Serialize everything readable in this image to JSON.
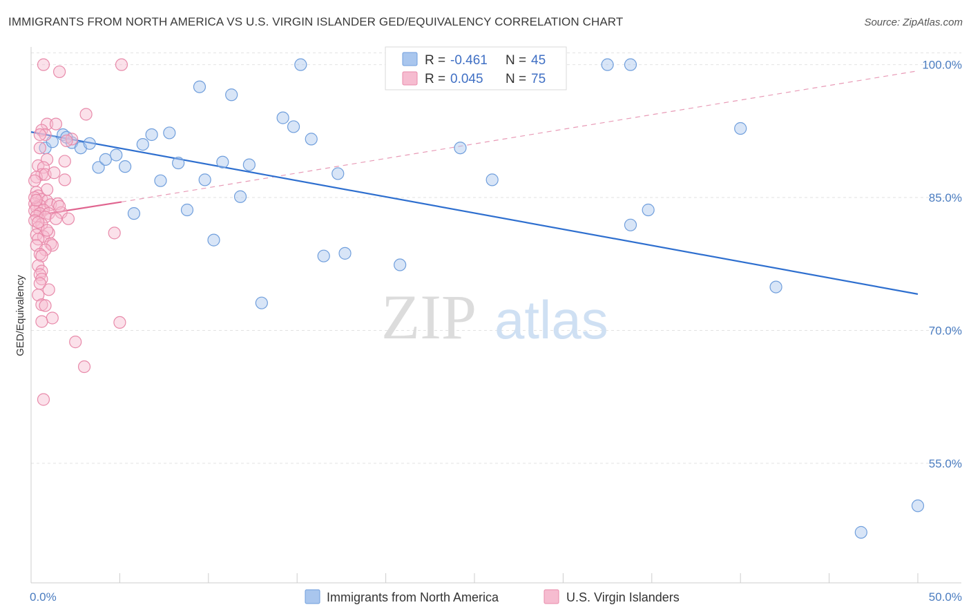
{
  "title": "IMMIGRANTS FROM NORTH AMERICA VS U.S. VIRGIN ISLANDER GED/EQUIVALENCY CORRELATION CHART",
  "source": "Source: ZipAtlas.com",
  "watermark": {
    "zip": "ZIP",
    "atlas": "atlas"
  },
  "legend_box": [
    {
      "r_label": "R =",
      "r_value": "-0.461",
      "n_label": "N =",
      "n_value": "45",
      "color": "#a9c6ee",
      "stroke": "#6f9edc"
    },
    {
      "r_label": "R =",
      "r_value": "0.045",
      "n_label": "N =",
      "n_value": "75",
      "color": "#f6bcd0",
      "stroke": "#e88aaa"
    }
  ],
  "bottom_legend": [
    {
      "label": "Immigrants from North America",
      "color": "#a9c6ee",
      "stroke": "#6f9edc"
    },
    {
      "label": "U.S. Virgin Islanders",
      "color": "#f6bcd0",
      "stroke": "#e88aaa"
    }
  ],
  "chart_data": {
    "type": "scatter",
    "title": "IMMIGRANTS FROM NORTH AMERICA VS U.S. VIRGIN ISLANDER GED/EQUIVALENCY CORRELATION CHART",
    "xlabel": "",
    "ylabel": "GED/Equivalency",
    "xlim": [
      0,
      50
    ],
    "ylim": [
      41.5,
      102
    ],
    "x_tick_labels": [
      {
        "value": 0,
        "label": "0.0%"
      },
      {
        "value": 50,
        "label": "50.0%"
      }
    ],
    "y_tick_labels": [
      {
        "value": 100,
        "label": "100.0%"
      },
      {
        "value": 85,
        "label": "85.0%"
      },
      {
        "value": 70,
        "label": "70.0%"
      },
      {
        "value": 55,
        "label": "55.0%"
      }
    ],
    "grid": true,
    "series": [
      {
        "name": "Immigrants from North America",
        "color": "#a9c6ee",
        "stroke": "#6f9edc",
        "trend": {
          "x": [
            0,
            50
          ],
          "y": [
            92.4,
            74.1
          ],
          "color": "#2e6fcf",
          "dashed": false
        },
        "points": [
          [
            0.8,
            90.6
          ],
          [
            1.2,
            91.3
          ],
          [
            1.8,
            92.1
          ],
          [
            2.3,
            91.2
          ],
          [
            2.8,
            90.6
          ],
          [
            3.3,
            91.1
          ],
          [
            3.8,
            88.4
          ],
          [
            4.2,
            89.3
          ],
          [
            4.8,
            89.8
          ],
          [
            5.3,
            88.5
          ],
          [
            5.8,
            83.2
          ],
          [
            6.3,
            91.0
          ],
          [
            6.8,
            92.1
          ],
          [
            7.3,
            86.9
          ],
          [
            7.8,
            92.3
          ],
          [
            8.3,
            88.9
          ],
          [
            8.8,
            83.6
          ],
          [
            9.5,
            97.5
          ],
          [
            9.8,
            87.0
          ],
          [
            10.3,
            80.2
          ],
          [
            10.8,
            89.0
          ],
          [
            11.3,
            96.6
          ],
          [
            11.8,
            85.1
          ],
          [
            12.3,
            88.7
          ],
          [
            13.0,
            73.1
          ],
          [
            14.2,
            94.0
          ],
          [
            14.8,
            93.0
          ],
          [
            15.2,
            100.0
          ],
          [
            15.8,
            91.6
          ],
          [
            16.5,
            78.4
          ],
          [
            17.3,
            87.7
          ],
          [
            17.7,
            78.7
          ],
          [
            20.8,
            77.4
          ],
          [
            24.2,
            90.6
          ],
          [
            25.5,
            100.0
          ],
          [
            26.0,
            87.0
          ],
          [
            32.5,
            100.0
          ],
          [
            33.8,
            100.0
          ],
          [
            33.8,
            81.9
          ],
          [
            34.8,
            83.6
          ],
          [
            40.0,
            92.8
          ],
          [
            42.0,
            74.9
          ],
          [
            46.8,
            47.2
          ],
          [
            50.0,
            50.2
          ],
          [
            2.0,
            91.8
          ]
        ]
      },
      {
        "name": "U.S. Virgin Islanders",
        "color": "#f6bcd0",
        "stroke": "#e88aaa",
        "trend": {
          "x": [
            0,
            5.1
          ],
          "y": [
            82.9,
            84.5
          ],
          "color": "#e0648f",
          "dashed": false
        },
        "trend_extension": {
          "x": [
            5.1,
            50
          ],
          "y": [
            84.5,
            99.3
          ],
          "color": "#e89ab6",
          "dashed": true
        },
        "points": [
          [
            0.7,
            100.0
          ],
          [
            1.6,
            99.2
          ],
          [
            5.1,
            100.0
          ],
          [
            3.1,
            94.4
          ],
          [
            0.9,
            93.3
          ],
          [
            1.4,
            93.3
          ],
          [
            0.6,
            92.6
          ],
          [
            0.8,
            92.1
          ],
          [
            0.5,
            92.1
          ],
          [
            2.3,
            91.6
          ],
          [
            2.0,
            91.4
          ],
          [
            0.5,
            90.6
          ],
          [
            0.9,
            89.3
          ],
          [
            1.9,
            89.1
          ],
          [
            0.4,
            88.6
          ],
          [
            0.7,
            88.4
          ],
          [
            0.6,
            87.6
          ],
          [
            0.3,
            87.3
          ],
          [
            0.8,
            87.6
          ],
          [
            1.9,
            87.0
          ],
          [
            0.2,
            86.9
          ],
          [
            0.9,
            85.9
          ],
          [
            0.3,
            85.6
          ],
          [
            0.4,
            85.2
          ],
          [
            0.6,
            84.8
          ],
          [
            0.9,
            84.6
          ],
          [
            0.2,
            84.3
          ],
          [
            0.5,
            84.1
          ],
          [
            1.1,
            84.2
          ],
          [
            1.5,
            84.3
          ],
          [
            0.3,
            83.9
          ],
          [
            0.7,
            83.6
          ],
          [
            0.2,
            83.5
          ],
          [
            0.5,
            83.2
          ],
          [
            1.0,
            83.2
          ],
          [
            1.7,
            83.3
          ],
          [
            0.3,
            82.9
          ],
          [
            0.8,
            82.8
          ],
          [
            1.4,
            82.6
          ],
          [
            0.2,
            82.4
          ],
          [
            0.6,
            82.0
          ],
          [
            0.4,
            81.6
          ],
          [
            1.0,
            81.0
          ],
          [
            0.3,
            80.8
          ],
          [
            0.7,
            80.6
          ],
          [
            0.4,
            80.3
          ],
          [
            1.1,
            79.8
          ],
          [
            1.2,
            79.6
          ],
          [
            0.3,
            79.6
          ],
          [
            0.8,
            79.1
          ],
          [
            0.5,
            78.6
          ],
          [
            0.6,
            78.4
          ],
          [
            0.4,
            77.3
          ],
          [
            0.6,
            76.7
          ],
          [
            0.5,
            76.3
          ],
          [
            0.6,
            75.8
          ],
          [
            0.5,
            75.3
          ],
          [
            1.0,
            74.6
          ],
          [
            0.4,
            74.0
          ],
          [
            0.6,
            72.9
          ],
          [
            0.8,
            72.8
          ],
          [
            1.2,
            71.4
          ],
          [
            0.6,
            71.0
          ],
          [
            2.5,
            68.7
          ],
          [
            3.0,
            65.9
          ],
          [
            0.7,
            62.2
          ],
          [
            4.7,
            81.0
          ],
          [
            5.0,
            70.9
          ],
          [
            1.3,
            87.8
          ],
          [
            0.2,
            85.0
          ],
          [
            1.6,
            84.0
          ],
          [
            0.9,
            81.3
          ],
          [
            0.4,
            82.2
          ],
          [
            2.1,
            82.6
          ],
          [
            0.3,
            84.7
          ]
        ]
      }
    ]
  }
}
